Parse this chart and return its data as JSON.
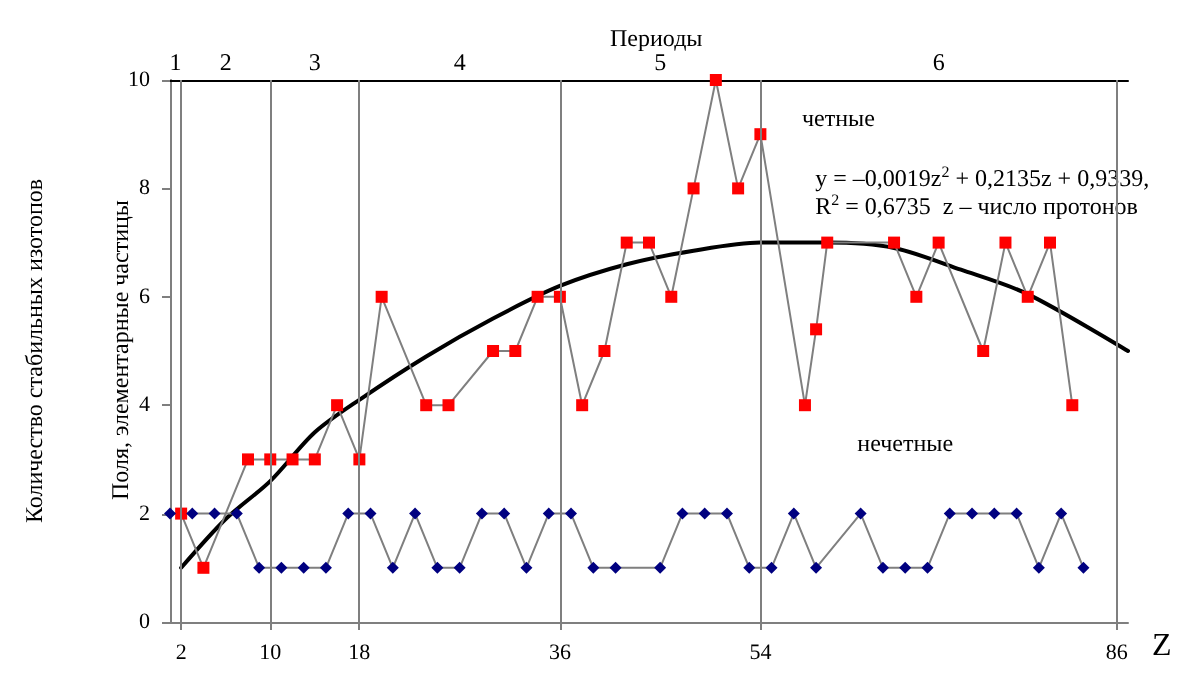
{
  "chart_data": {
    "type": "line",
    "title": "Периоды",
    "xlabel": "Z",
    "ylabel": "Количество стабильных изотопов",
    "annotations": [
      "Поля, элементарные частицы",
      "y = –0,0019z$^{2}$ + 0,2135z + 0,9339,",
      "R$^{2}$ = 0,6735  z – число протонов",
      "1",
      "2",
      "3",
      "4",
      "5",
      "6"
    ],
    "xlim": [
      1,
      87
    ],
    "xticks": [
      2,
      10,
      18,
      36,
      54,
      86
    ],
    "ylim": [
      0,
      10
    ],
    "yticks": [
      0,
      2,
      4,
      6,
      8,
      10
    ],
    "grid": false,
    "legend": false,
    "ref_lines": [
      {
        "axis": "x",
        "value": 2
      },
      {
        "axis": "x",
        "value": 10
      },
      {
        "axis": "x",
        "value": 18
      },
      {
        "axis": "x",
        "value": 36
      },
      {
        "axis": "x",
        "value": 54
      },
      {
        "axis": "x",
        "value": 86
      }
    ],
    "series": [
      {
        "name": "четные",
        "color": "#ff0000",
        "marker": "square",
        "x": [
          2,
          4,
          8,
          10,
          12,
          14,
          16,
          18,
          20,
          24,
          26,
          30,
          32,
          34,
          36,
          38,
          40,
          42,
          44,
          46,
          48,
          50,
          52,
          54,
          58,
          59,
          60,
          66,
          68,
          70,
          74,
          76,
          78,
          80,
          82
        ],
        "values": [
          2,
          1,
          3,
          3,
          3,
          3,
          4,
          3,
          6,
          4,
          4,
          5,
          5,
          6,
          6,
          4,
          5,
          7,
          7,
          6,
          8,
          10,
          8,
          9,
          4,
          5.4,
          7,
          7,
          6,
          7,
          5,
          7,
          6,
          7,
          4
        ]
      },
      {
        "name": "нечетные",
        "color": "#000080",
        "marker": "diamond",
        "x": [
          1,
          3,
          5,
          7,
          9,
          11,
          13,
          15,
          17,
          19,
          21,
          23,
          25,
          27,
          29,
          31,
          33,
          35,
          37,
          39,
          41,
          45,
          47,
          49,
          51,
          53,
          55,
          57,
          59,
          63,
          65,
          67,
          69,
          71,
          73,
          75,
          77,
          79,
          81,
          83
        ],
        "values": [
          2,
          2,
          2,
          2,
          1,
          1,
          1,
          1,
          2,
          2,
          1,
          2,
          1,
          1,
          2,
          2,
          1,
          2,
          2,
          1,
          1,
          1,
          2,
          2,
          2,
          1,
          1,
          2,
          1,
          2,
          1,
          1,
          1,
          2,
          2,
          2,
          2,
          1,
          2,
          1
        ]
      },
      {
        "type": "line",
        "color": "#000000",
        "marker": "none",
        "x": [
          2,
          6,
          10,
          14,
          18,
          24,
          30,
          36,
          42,
          48,
          54,
          60,
          66,
          72,
          78,
          87
        ],
        "values": [
          1.0,
          1.9,
          2.6,
          3.5,
          4.1,
          4.9,
          5.6,
          6.2,
          6.6,
          6.85,
          7.0,
          7.0,
          6.9,
          6.5,
          6.05,
          5.0
        ]
      }
    ]
  }
}
